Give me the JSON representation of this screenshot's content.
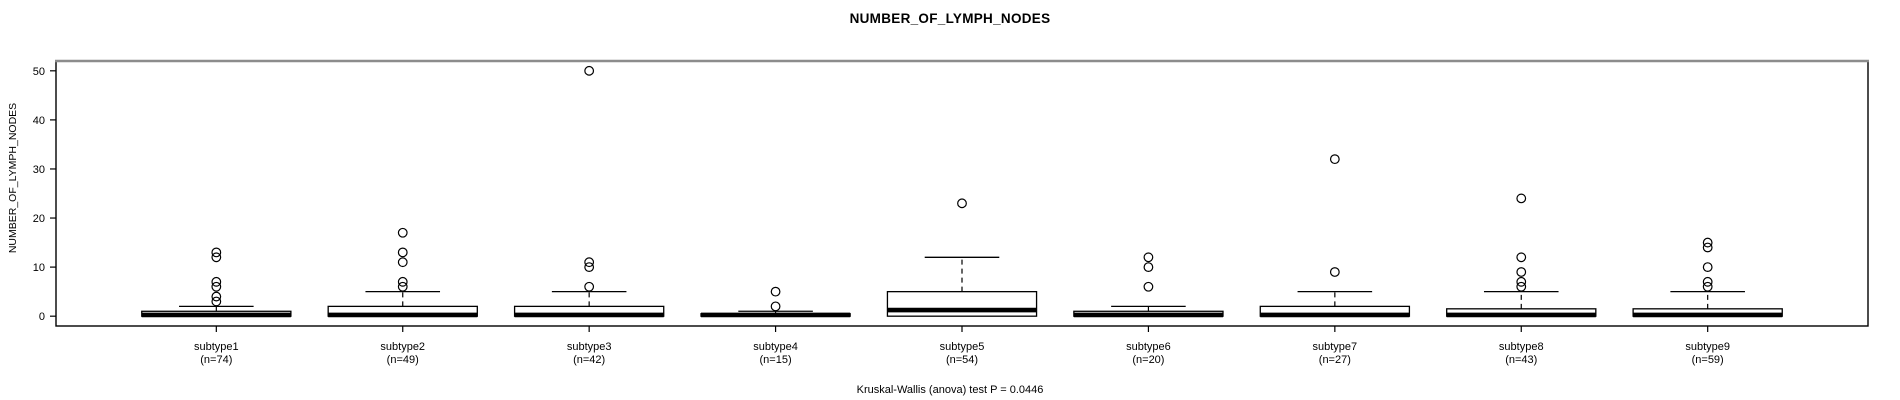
{
  "figure": {
    "title": "NUMBER_OF_LYMPH_NODES",
    "y_axis_title": "NUMBER_OF_LYMPH_NODES",
    "footer": "Kruskal-Wallis (anova) test P = 0.0446"
  },
  "chart_data": {
    "type": "box",
    "title": "NUMBER_OF_LYMPH_NODES",
    "xlabel": "",
    "ylabel": "NUMBER_OF_LYMPH_NODES",
    "footnote": "Kruskal-Wallis (anova) test P = 0.0446",
    "statistical_test": "Kruskal-Wallis (anova)",
    "p_value": 0.0446,
    "grid": false,
    "legend": "none",
    "yticks": [
      0,
      10,
      20,
      30,
      40,
      50
    ],
    "ylim": [
      -2,
      52
    ],
    "xlim": [
      0.14,
      9.86
    ],
    "box_width_units": 0.8,
    "staple_width_units": 0.4,
    "colors": {
      "box_fill": "#ffffff",
      "stroke": "#000000",
      "border_top": "#8c8c8c"
    },
    "groups": [
      {
        "label": "subtype1",
        "n": 74,
        "n_label": "(n=74)",
        "q1": 0,
        "median": 0,
        "q3": 1,
        "whisker_low": 0,
        "whisker_high": 2,
        "outliers": [
          3,
          4,
          6,
          7,
          12,
          13
        ]
      },
      {
        "label": "subtype2",
        "n": 49,
        "n_label": "(n=49)",
        "q1": 0,
        "median": 0,
        "q3": 2,
        "whisker_low": 0,
        "whisker_high": 5,
        "outliers": [
          6,
          7,
          11,
          13,
          17
        ]
      },
      {
        "label": "subtype3",
        "n": 42,
        "n_label": "(n=42)",
        "q1": 0,
        "median": 0,
        "q3": 2,
        "whisker_low": 0,
        "whisker_high": 5,
        "outliers": [
          6,
          10,
          11,
          50
        ]
      },
      {
        "label": "subtype4",
        "n": 15,
        "n_label": "(n=15)",
        "q1": 0,
        "median": 0,
        "q3": 0.5,
        "whisker_low": 0,
        "whisker_high": 1,
        "outliers": [
          2,
          5
        ]
      },
      {
        "label": "subtype5",
        "n": 54,
        "n_label": "(n=54)",
        "q1": 0,
        "median": 1,
        "q3": 5,
        "whisker_low": 0,
        "whisker_high": 12,
        "outliers": [
          23
        ]
      },
      {
        "label": "subtype6",
        "n": 20,
        "n_label": "(n=20)",
        "q1": 0,
        "median": 0,
        "q3": 1,
        "whisker_low": 0,
        "whisker_high": 2,
        "outliers": [
          6,
          10,
          12
        ]
      },
      {
        "label": "subtype7",
        "n": 27,
        "n_label": "(n=27)",
        "q1": 0,
        "median": 0,
        "q3": 2,
        "whisker_low": 0,
        "whisker_high": 5,
        "outliers": [
          9,
          32
        ]
      },
      {
        "label": "subtype8",
        "n": 43,
        "n_label": "(n=43)",
        "q1": 0,
        "median": 0,
        "q3": 1.5,
        "whisker_low": 0,
        "whisker_high": 5,
        "outliers": [
          6,
          7,
          9,
          12,
          24
        ]
      },
      {
        "label": "subtype9",
        "n": 59,
        "n_label": "(n=59)",
        "q1": 0,
        "median": 0,
        "q3": 1.5,
        "whisker_low": 0,
        "whisker_high": 5,
        "outliers": [
          6,
          7,
          10,
          14,
          15
        ]
      }
    ]
  }
}
